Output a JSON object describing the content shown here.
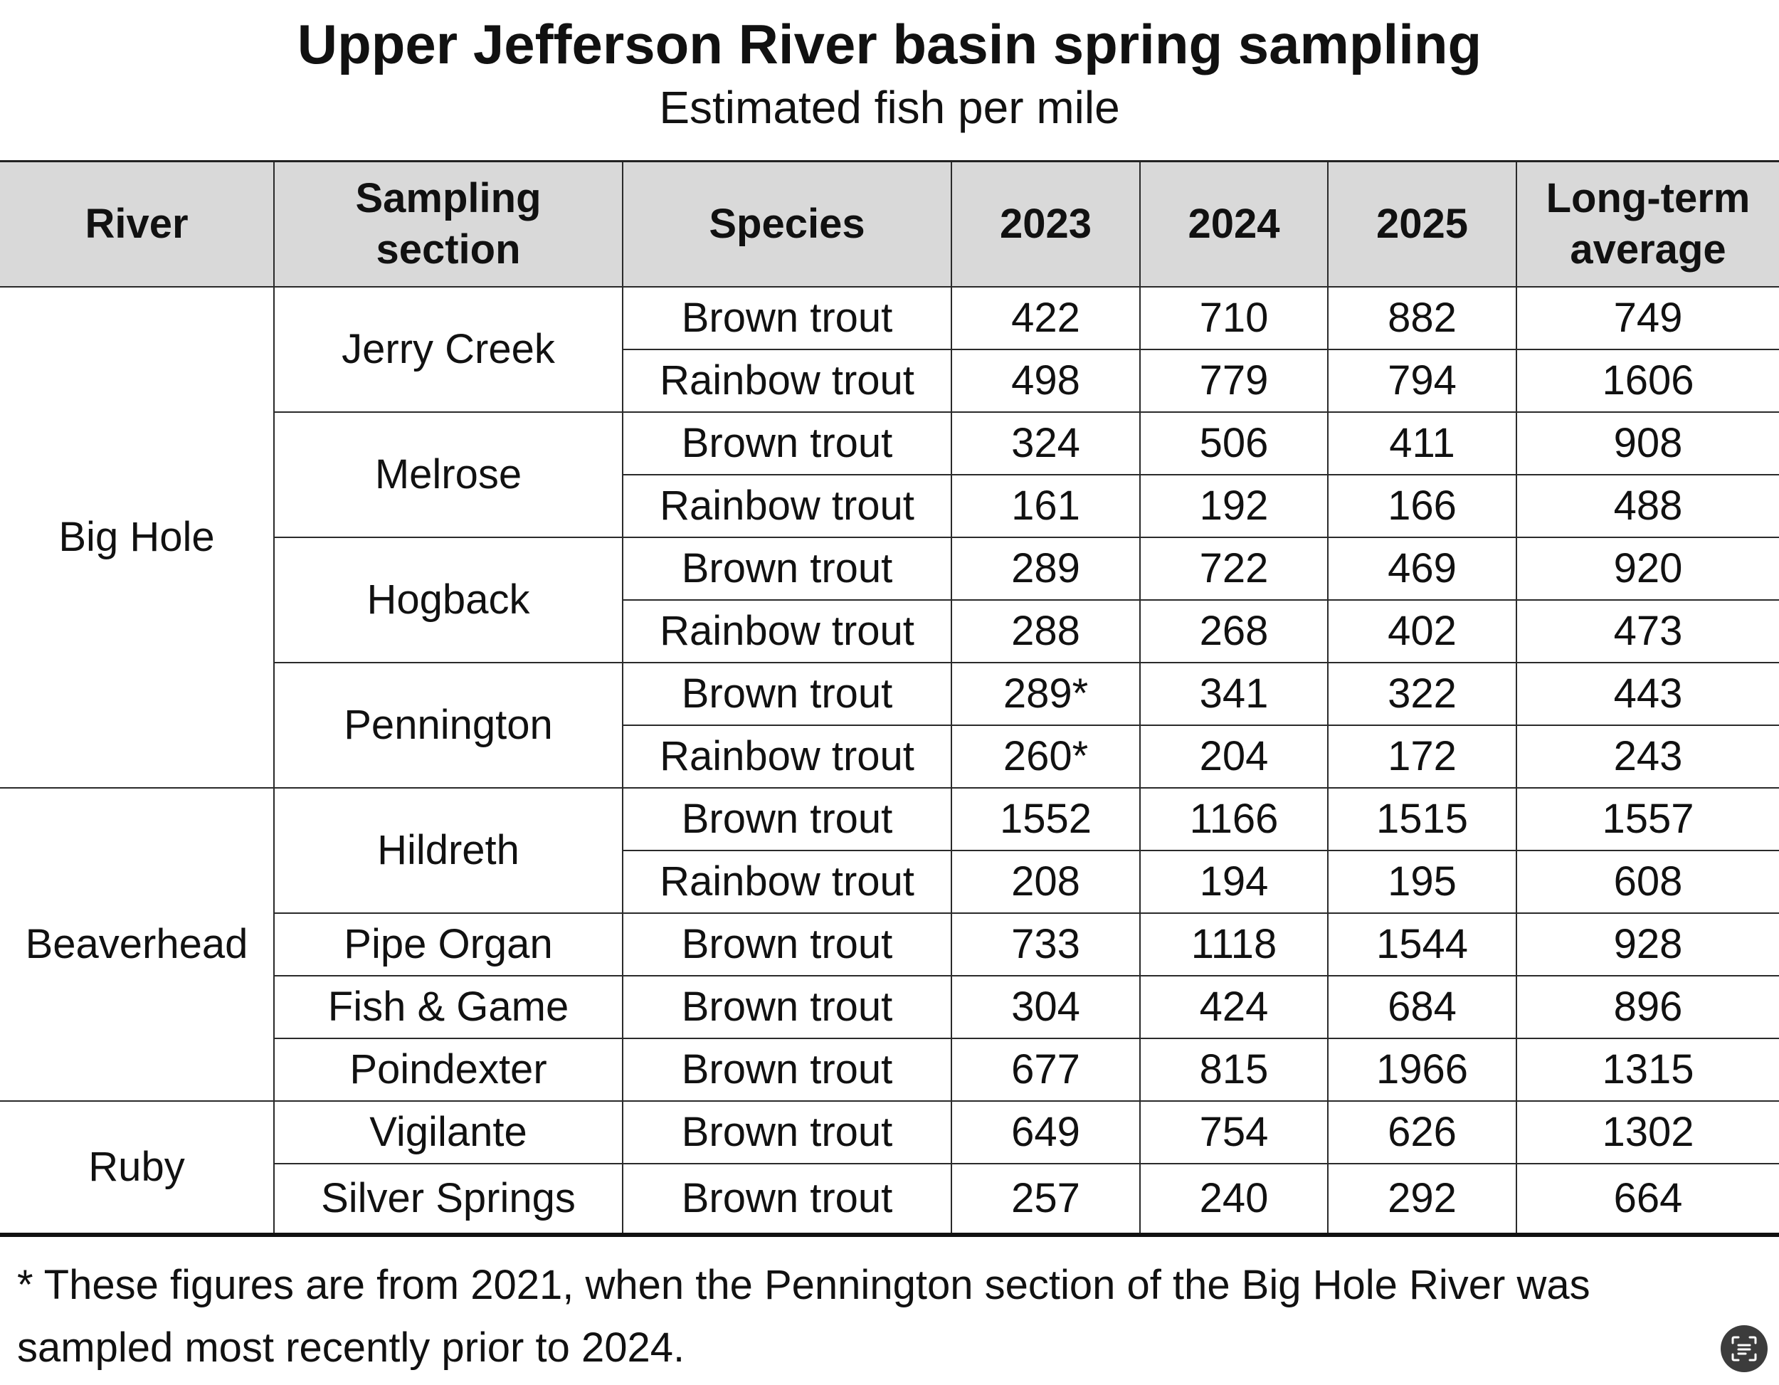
{
  "title": "Upper Jefferson River basin spring sampling",
  "subtitle": "Estimated fish per mile",
  "columns": {
    "river": "River",
    "section_line1": "Sampling",
    "section_line2": "section",
    "species": "Species",
    "y2023": "2023",
    "y2024": "2024",
    "y2025": "2025",
    "avg_line1": "Long-term",
    "avg_line2": "average"
  },
  "rivers": [
    "Big Hole",
    "Beaverhead",
    "Ruby"
  ],
  "sections": [
    "Jerry Creek",
    "Melrose",
    "Hogback",
    "Pennington",
    "Hildreth",
    "Pipe Organ",
    "Fish & Game",
    "Poindexter",
    "Vigilante",
    "Silver Springs"
  ],
  "rows": [
    {
      "species": "Brown trout",
      "y2023": "422",
      "y2024": "710",
      "y2025": "882",
      "avg": "749"
    },
    {
      "species": "Rainbow trout",
      "y2023": "498",
      "y2024": "779",
      "y2025": "794",
      "avg": "1606"
    },
    {
      "species": "Brown trout",
      "y2023": "324",
      "y2024": "506",
      "y2025": "411",
      "avg": "908"
    },
    {
      "species": "Rainbow trout",
      "y2023": "161",
      "y2024": "192",
      "y2025": "166",
      "avg": "488"
    },
    {
      "species": "Brown trout",
      "y2023": "289",
      "y2024": "722",
      "y2025": "469",
      "avg": "920"
    },
    {
      "species": "Rainbow trout",
      "y2023": "288",
      "y2024": "268",
      "y2025": "402",
      "avg": "473"
    },
    {
      "species": "Brown trout",
      "y2023": "289*",
      "y2024": "341",
      "y2025": "322",
      "avg": "443"
    },
    {
      "species": "Rainbow trout",
      "y2023": "260*",
      "y2024": "204",
      "y2025": "172",
      "avg": "243"
    },
    {
      "species": "Brown trout",
      "y2023": "1552",
      "y2024": "1166",
      "y2025": "1515",
      "avg": "1557"
    },
    {
      "species": "Rainbow trout",
      "y2023": "208",
      "y2024": "194",
      "y2025": "195",
      "avg": "608"
    },
    {
      "species": "Brown trout",
      "y2023": "733",
      "y2024": "1118",
      "y2025": "1544",
      "avg": "928"
    },
    {
      "species": "Brown trout",
      "y2023": "304",
      "y2024": "424",
      "y2025": "684",
      "avg": "896"
    },
    {
      "species": "Brown trout",
      "y2023": "677",
      "y2024": "815",
      "y2025": "1966",
      "avg": "1315"
    },
    {
      "species": "Brown trout",
      "y2023": "649",
      "y2024": "754",
      "y2025": "626",
      "avg": "1302"
    },
    {
      "species": "Brown trout",
      "y2023": "257",
      "y2024": "240",
      "y2025": "292",
      "avg": "664"
    }
  ],
  "footnote_line1": "* These figures are from 2021, when the Pennington section of the Big Hole River was",
  "footnote_line2": "sampled most recently prior to 2024.",
  "icon": "scan-text-icon"
}
